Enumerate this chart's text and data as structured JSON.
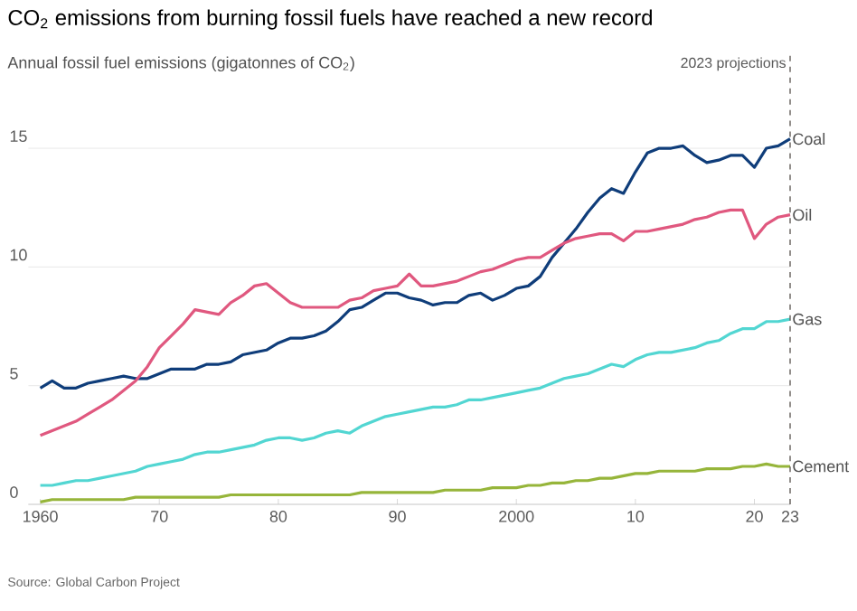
{
  "chart_data": {
    "type": "line",
    "title": "CO$_{2}$ emissions from burning fossil fuels have reached a new record",
    "subtitle": "Annual fossil fuel emissions (gigatonnes of CO$_{2}$)",
    "annotations": [
      "Source: Global Carbon Project"
    ],
    "x": [
      1960,
      1961,
      1962,
      1963,
      1964,
      1965,
      1966,
      1967,
      1968,
      1969,
      1970,
      1971,
      1972,
      1973,
      1974,
      1975,
      1976,
      1977,
      1978,
      1979,
      1980,
      1981,
      1982,
      1983,
      1984,
      1985,
      1986,
      1987,
      1988,
      1989,
      1990,
      1991,
      1992,
      1993,
      1994,
      1995,
      1996,
      1997,
      1998,
      1999,
      2000,
      2001,
      2002,
      2003,
      2004,
      2005,
      2006,
      2007,
      2008,
      2009,
      2010,
      2011,
      2012,
      2013,
      2014,
      2015,
      2016,
      2017,
      2018,
      2019,
      2020,
      2021,
      2022,
      2023
    ],
    "series": [
      {
        "name": "Coal",
        "color": "#0f3d7a",
        "values": [
          4.9,
          5.2,
          4.9,
          4.9,
          5.1,
          5.2,
          5.3,
          5.4,
          5.3,
          5.3,
          5.5,
          5.7,
          5.7,
          5.7,
          5.9,
          5.9,
          6.0,
          6.3,
          6.4,
          6.5,
          6.8,
          7.0,
          7.0,
          7.1,
          7.3,
          7.7,
          8.2,
          8.3,
          8.6,
          8.9,
          8.9,
          8.7,
          8.6,
          8.4,
          8.5,
          8.5,
          8.8,
          8.9,
          8.6,
          8.8,
          9.1,
          9.2,
          9.6,
          10.4,
          11.0,
          11.6,
          12.3,
          12.9,
          13.3,
          13.1,
          14.0,
          14.8,
          15.0,
          15.0,
          15.1,
          14.7,
          14.4,
          14.5,
          14.7,
          14.7,
          14.2,
          15.0,
          15.1,
          15.4
        ]
      },
      {
        "name": "Oil",
        "color": "#e0587f",
        "values": [
          2.9,
          3.1,
          3.3,
          3.5,
          3.8,
          4.1,
          4.4,
          4.8,
          5.2,
          5.8,
          6.6,
          7.1,
          7.6,
          8.2,
          8.1,
          8.0,
          8.5,
          8.8,
          9.2,
          9.3,
          8.9,
          8.5,
          8.3,
          8.3,
          8.3,
          8.3,
          8.6,
          8.7,
          9.0,
          9.1,
          9.2,
          9.7,
          9.2,
          9.2,
          9.3,
          9.4,
          9.6,
          9.8,
          9.9,
          10.1,
          10.3,
          10.4,
          10.4,
          10.7,
          11.0,
          11.2,
          11.3,
          11.4,
          11.4,
          11.1,
          11.5,
          11.5,
          11.6,
          11.7,
          11.8,
          12.0,
          12.1,
          12.3,
          12.4,
          12.4,
          11.2,
          11.8,
          12.1,
          12.2
        ]
      },
      {
        "name": "Gas",
        "color": "#52d6d2",
        "values": [
          0.8,
          0.8,
          0.9,
          1.0,
          1.0,
          1.1,
          1.2,
          1.3,
          1.4,
          1.6,
          1.7,
          1.8,
          1.9,
          2.1,
          2.2,
          2.2,
          2.3,
          2.4,
          2.5,
          2.7,
          2.8,
          2.8,
          2.7,
          2.8,
          3.0,
          3.1,
          3.0,
          3.3,
          3.5,
          3.7,
          3.8,
          3.9,
          4.0,
          4.1,
          4.1,
          4.2,
          4.4,
          4.4,
          4.5,
          4.6,
          4.7,
          4.8,
          4.9,
          5.1,
          5.3,
          5.4,
          5.5,
          5.7,
          5.9,
          5.8,
          6.1,
          6.3,
          6.4,
          6.4,
          6.5,
          6.6,
          6.8,
          6.9,
          7.2,
          7.4,
          7.4,
          7.7,
          7.7,
          7.8
        ]
      },
      {
        "name": "Cement",
        "color": "#96b53a",
        "values": [
          0.1,
          0.2,
          0.2,
          0.2,
          0.2,
          0.2,
          0.2,
          0.2,
          0.3,
          0.3,
          0.3,
          0.3,
          0.3,
          0.3,
          0.3,
          0.3,
          0.4,
          0.4,
          0.4,
          0.4,
          0.4,
          0.4,
          0.4,
          0.4,
          0.4,
          0.4,
          0.4,
          0.5,
          0.5,
          0.5,
          0.5,
          0.5,
          0.5,
          0.5,
          0.6,
          0.6,
          0.6,
          0.6,
          0.7,
          0.7,
          0.7,
          0.8,
          0.8,
          0.9,
          0.9,
          1.0,
          1.0,
          1.1,
          1.1,
          1.2,
          1.3,
          1.3,
          1.4,
          1.4,
          1.4,
          1.4,
          1.5,
          1.5,
          1.5,
          1.6,
          1.6,
          1.7,
          1.6,
          1.6
        ]
      }
    ],
    "xlim": [
      1959,
      2023
    ],
    "xticks": [
      1960,
      {
        "value": 1970,
        "label": "70"
      },
      {
        "value": 1980,
        "label": "80"
      },
      {
        "value": 1990,
        "label": "90"
      },
      2000,
      {
        "value": 2010,
        "label": "10"
      },
      {
        "value": 2020,
        "label": "20"
      },
      {
        "value": 2023,
        "label": "23"
      }
    ],
    "ylim": [
      0,
      19
    ],
    "yticks": [
      0,
      5,
      10,
      15
    ],
    "grid": "y",
    "legend": false,
    "marker": "none",
    "line_style": "solid",
    "ref_lines": [
      {
        "axis": "x",
        "value": 2023,
        "label": "2023 projections",
        "color": "#66605c",
        "line_style": "dashed"
      }
    ]
  }
}
